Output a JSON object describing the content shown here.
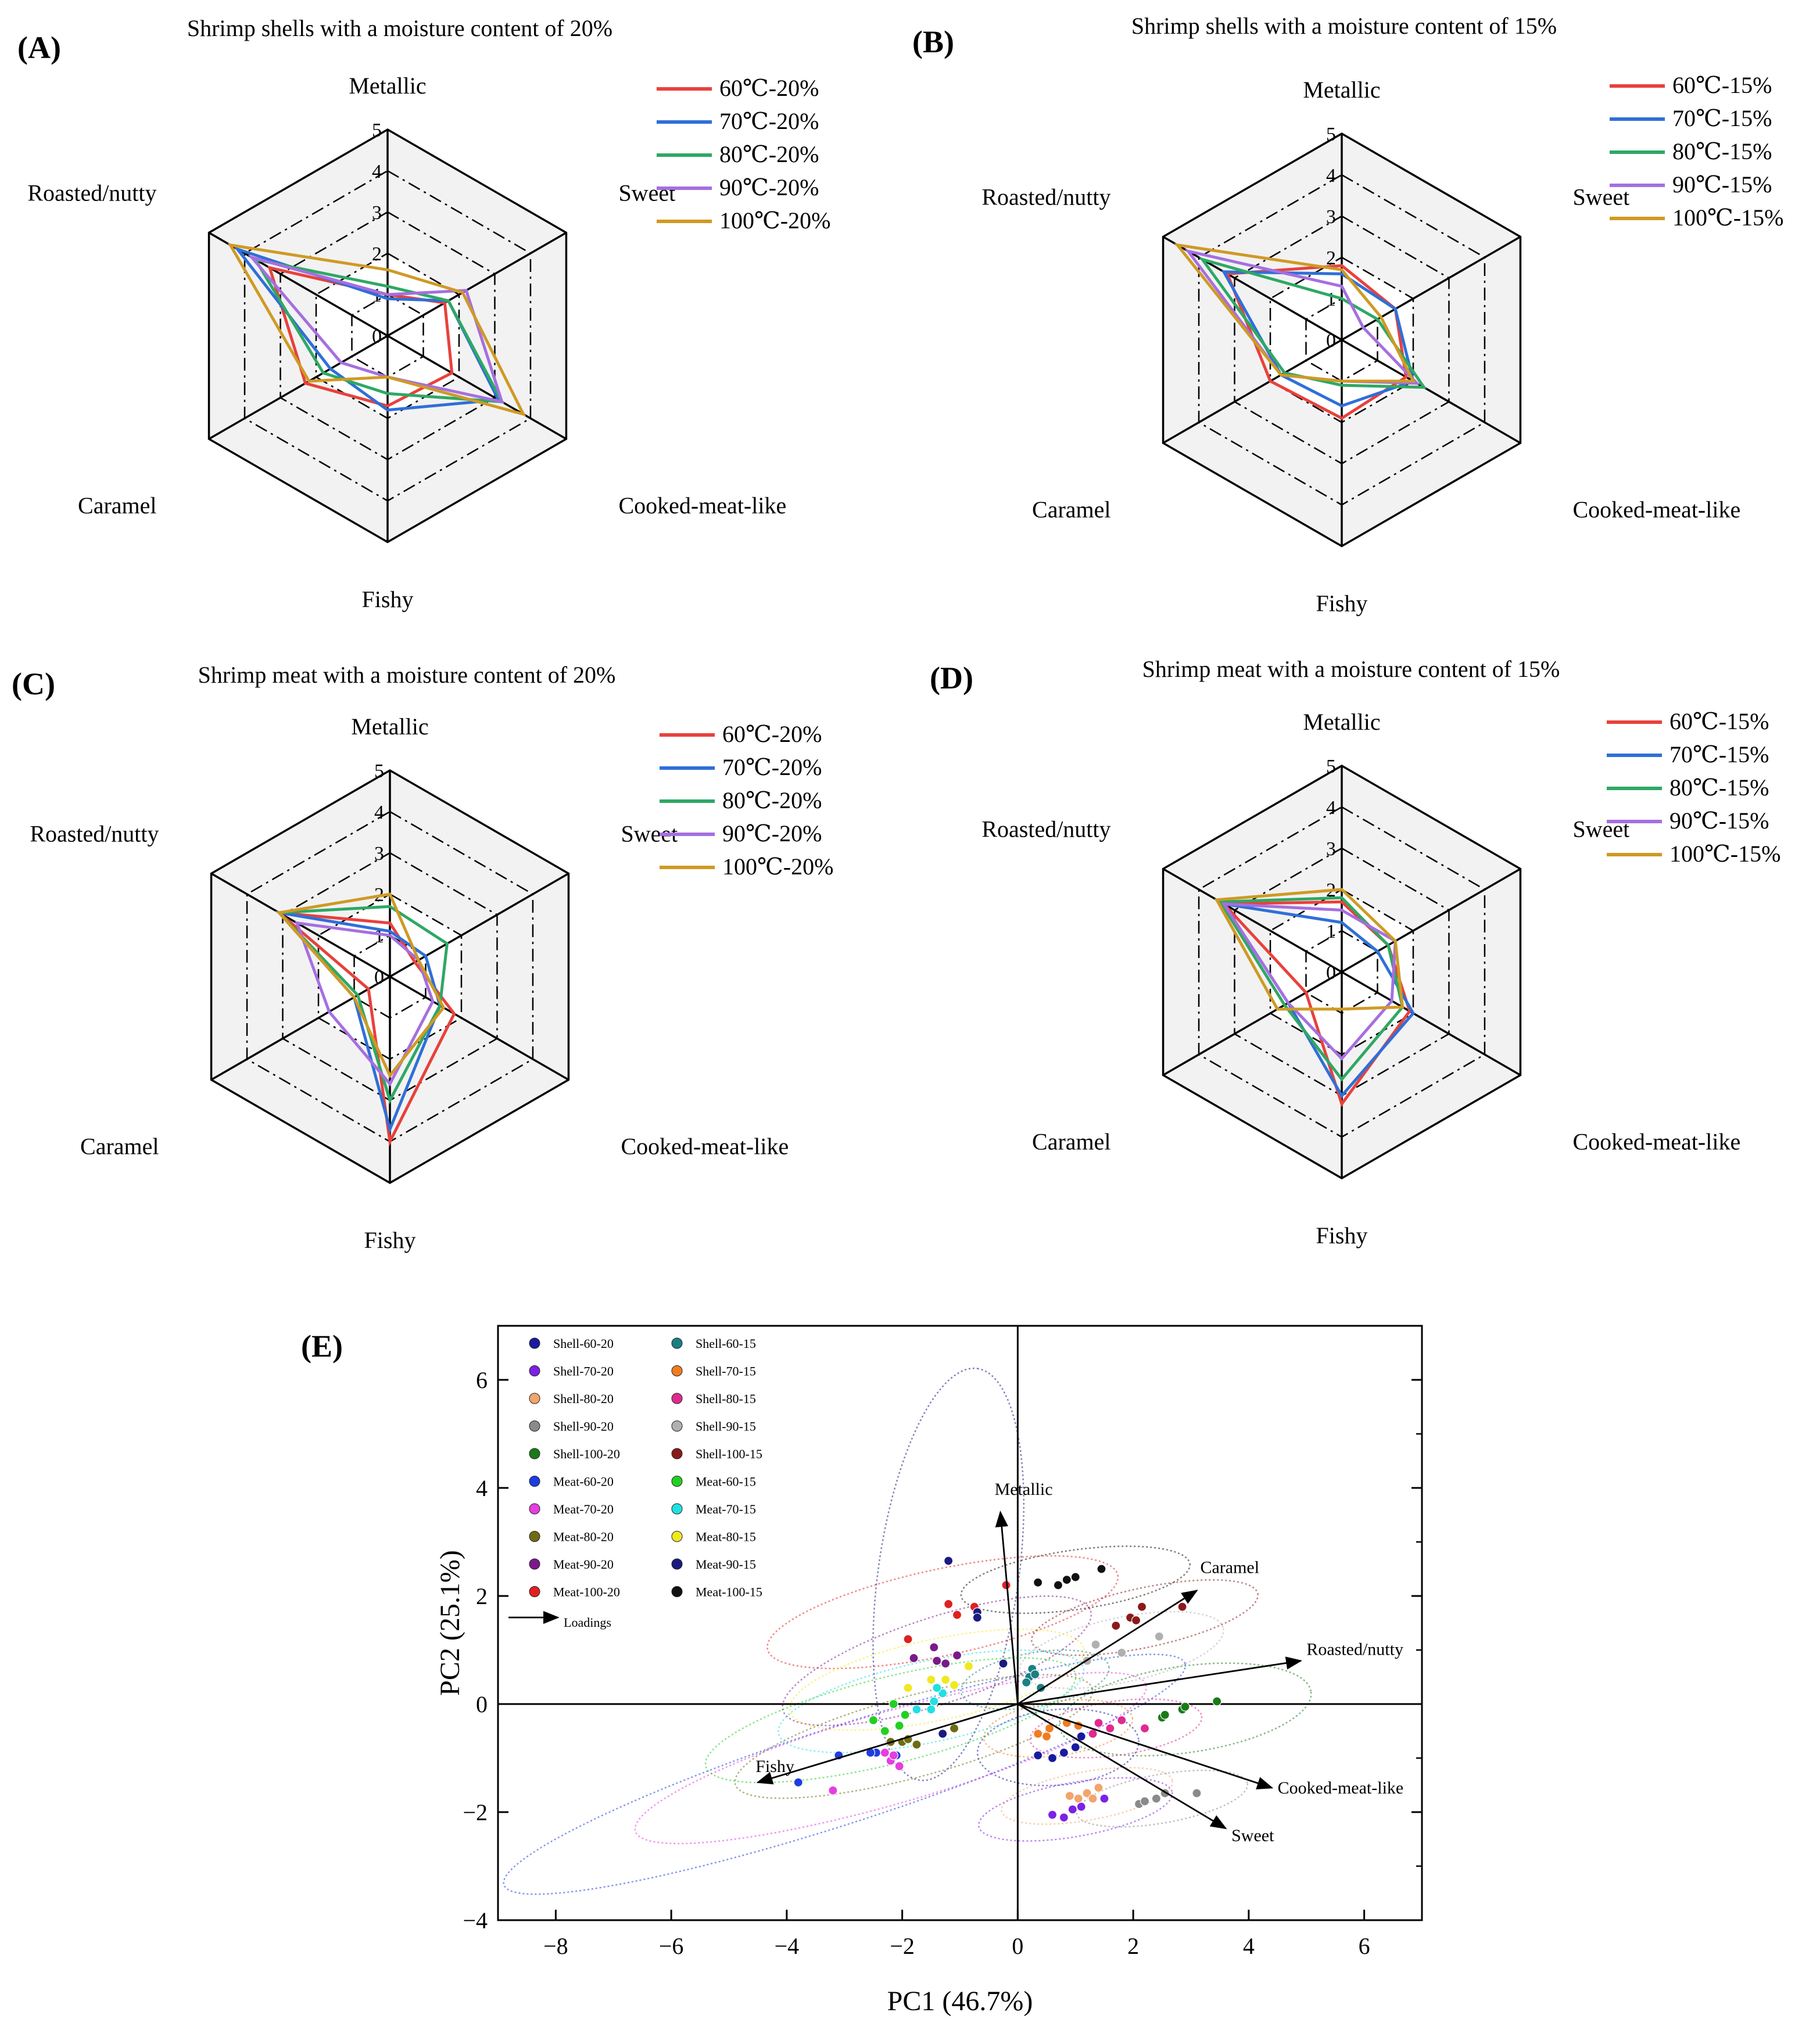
{
  "figure": {
    "label_color": "#000000",
    "axis_tick_values": [
      "0",
      "1",
      "2",
      "3",
      "4",
      "5"
    ]
  },
  "series_colors": {
    "60": "#e8413c",
    "70": "#2f6fd8",
    "80": "#2ea864",
    "90": "#a56fe0",
    "100": "#cf9a24"
  },
  "chart_data": [
    {
      "type": "radar",
      "panel": "(A)",
      "title": "Shrimp shells with a moisture content of 20%",
      "axes": [
        "Metallic",
        "Sweet",
        "Cooked-meat-like",
        "Fishy",
        "Caramel",
        "Roasted/nutty"
      ],
      "range": [
        0,
        5
      ],
      "series": [
        {
          "name": "60℃-20%",
          "values": [
            1.0,
            1.6,
            1.8,
            1.7,
            2.3,
            3.3
          ]
        },
        {
          "name": "70℃-20%",
          "values": [
            0.9,
            1.7,
            3.1,
            1.8,
            1.6,
            4.2
          ]
        },
        {
          "name": "80℃-20%",
          "values": [
            1.2,
            1.7,
            3.2,
            1.4,
            1.8,
            3.7
          ]
        },
        {
          "name": "90℃-20%",
          "values": [
            1.0,
            2.2,
            3.2,
            1.0,
            1.3,
            3.8
          ]
        },
        {
          "name": "100℃-20%",
          "values": [
            1.6,
            2.1,
            3.8,
            1.0,
            2.2,
            4.4
          ]
        }
      ]
    },
    {
      "type": "radar",
      "panel": "(B)",
      "title": "Shrimp shells with a moisture content of 15%",
      "axes": [
        "Metallic",
        "Sweet",
        "Cooked-meat-like",
        "Fishy",
        "Caramel",
        "Roasted/nutty"
      ],
      "range": [
        0,
        5
      ],
      "series": [
        {
          "name": "60℃-15%",
          "values": [
            1.8,
            1.5,
            1.8,
            1.9,
            2.0,
            3.2
          ]
        },
        {
          "name": "70℃-15%",
          "values": [
            1.6,
            1.5,
            2.0,
            1.6,
            1.7,
            3.3
          ]
        },
        {
          "name": "80℃-15%",
          "values": [
            1.0,
            1.0,
            2.3,
            1.1,
            1.6,
            3.9
          ]
        },
        {
          "name": "90℃-15%",
          "values": [
            1.3,
            0.6,
            2.1,
            1.0,
            1.7,
            4.3
          ]
        },
        {
          "name": "100℃-15%",
          "values": [
            1.7,
            1.1,
            2.0,
            1.0,
            1.7,
            4.6
          ]
        }
      ]
    },
    {
      "type": "radar",
      "panel": "(C)",
      "title": "Shrimp meat with a moisture content of 20%",
      "axes": [
        "Metallic",
        "Sweet",
        "Cooked-meat-like",
        "Fishy",
        "Caramel",
        "Roasted/nutty"
      ],
      "range": [
        0,
        5
      ],
      "series": [
        {
          "name": "60℃-20%",
          "values": [
            1.3,
            0.7,
            1.8,
            4.0,
            0.6,
            3.1
          ]
        },
        {
          "name": "70℃-20%",
          "values": [
            1.1,
            1.0,
            1.4,
            3.7,
            1.0,
            3.1
          ]
        },
        {
          "name": "80℃-20%",
          "values": [
            1.7,
            1.6,
            1.4,
            3.0,
            0.9,
            3.1
          ]
        },
        {
          "name": "90℃-20%",
          "values": [
            1.0,
            0.8,
            1.2,
            2.6,
            1.7,
            2.6
          ]
        },
        {
          "name": "100℃-20%",
          "values": [
            2.0,
            0.8,
            1.5,
            2.4,
            1.0,
            3.1
          ]
        }
      ]
    },
    {
      "type": "radar",
      "panel": "(D)",
      "title": "Shrimp meat with a moisture content of 15%",
      "axes": [
        "Metallic",
        "Sweet",
        "Cooked-meat-like",
        "Fishy",
        "Caramel",
        "Roasted/nutty"
      ],
      "range": [
        0,
        5
      ],
      "series": [
        {
          "name": "60℃-15%",
          "values": [
            1.7,
            1.3,
            1.9,
            3.2,
            1.0,
            3.3
          ]
        },
        {
          "name": "70℃-15%",
          "values": [
            1.2,
            1.0,
            2.0,
            3.0,
            1.5,
            3.3
          ]
        },
        {
          "name": "80℃-15%",
          "values": [
            1.8,
            1.3,
            1.7,
            2.6,
            1.6,
            3.4
          ]
        },
        {
          "name": "90℃-15%",
          "values": [
            1.5,
            1.5,
            1.4,
            2.1,
            1.5,
            3.3
          ]
        },
        {
          "name": "100℃-15%",
          "values": [
            2.0,
            1.5,
            1.7,
            0.9,
            1.8,
            3.5
          ]
        }
      ]
    },
    {
      "type": "scatter",
      "panel": "(E)",
      "xlabel": "PC1 (46.7%)",
      "ylabel": "PC2 (25.1%)",
      "xlim": [
        -9,
        7
      ],
      "ylim": [
        -4,
        7
      ],
      "xticks": [
        -8,
        -6,
        -4,
        -2,
        0,
        2,
        4,
        6
      ],
      "yticks": [
        -4,
        -2,
        0,
        2,
        4,
        6
      ],
      "loadings_label": "Loadings",
      "loadings": [
        {
          "name": "Metallic",
          "x": -0.3,
          "y": 3.55
        },
        {
          "name": "Caramel",
          "x": 3.1,
          "y": 2.1
        },
        {
          "name": "Roasted/nutty",
          "x": 4.9,
          "y": 0.8
        },
        {
          "name": "Cooked-meat-like",
          "x": 4.4,
          "y": -1.55
        },
        {
          "name": "Sweet",
          "x": 3.6,
          "y": -2.3
        },
        {
          "name": "Fishy",
          "x": -4.5,
          "y": -1.45
        }
      ],
      "groups": [
        {
          "name": "Shell-60-20",
          "color": "#1a1aa0",
          "points": [
            [
              0.6,
              -1.0
            ],
            [
              0.8,
              -0.9
            ],
            [
              1.1,
              -0.6
            ],
            [
              1.0,
              -0.8
            ],
            [
              0.35,
              -0.95
            ]
          ],
          "ellipse": {
            "cx": 0.7,
            "cy": -0.8,
            "rx": 1.4,
            "ry": 0.7,
            "angle": 5
          }
        },
        {
          "name": "Shell-70-20",
          "color": "#7b22e6",
          "points": [
            [
              0.6,
              -2.05
            ],
            [
              0.8,
              -2.1
            ],
            [
              0.95,
              -1.95
            ],
            [
              1.1,
              -1.9
            ],
            [
              1.5,
              -1.75
            ]
          ],
          "ellipse": {
            "cx": 1.0,
            "cy": -1.95,
            "rx": 1.7,
            "ry": 0.5,
            "angle": 10
          }
        },
        {
          "name": "Shell-80-20",
          "color": "#f2a46b",
          "points": [
            [
              0.9,
              -1.7
            ],
            [
              1.05,
              -1.75
            ],
            [
              1.2,
              -1.65
            ],
            [
              1.4,
              -1.55
            ],
            [
              1.3,
              -1.75
            ]
          ],
          "ellipse": {
            "cx": 1.2,
            "cy": -1.7,
            "rx": 1.5,
            "ry": 0.45,
            "angle": 10
          }
        },
        {
          "name": "Shell-90-20",
          "color": "#8a8a8a",
          "points": [
            [
              2.1,
              -1.85
            ],
            [
              2.4,
              -1.75
            ],
            [
              2.55,
              -1.65
            ],
            [
              3.1,
              -1.65
            ],
            [
              2.2,
              -1.8
            ]
          ],
          "ellipse": {
            "cx": 2.5,
            "cy": -1.75,
            "rx": 1.5,
            "ry": 0.45,
            "angle": 10
          }
        },
        {
          "name": "Shell-100-20",
          "color": "#1a7a1a",
          "points": [
            [
              2.5,
              -0.25
            ],
            [
              2.85,
              -0.1
            ],
            [
              3.45,
              0.05
            ],
            [
              2.9,
              -0.05
            ],
            [
              2.55,
              -0.2
            ]
          ],
          "ellipse": {
            "cx": 2.9,
            "cy": -0.1,
            "rx": 2.2,
            "ry": 0.8,
            "angle": 8
          }
        },
        {
          "name": "Meat-60-20",
          "color": "#1e3de0",
          "points": [
            [
              -3.8,
              -1.45
            ],
            [
              -3.1,
              -0.95
            ],
            [
              -2.45,
              -0.9
            ],
            [
              -2.1,
              -0.95
            ],
            [
              -2.55,
              -0.9
            ]
          ],
          "ellipse": {
            "cx": -3.0,
            "cy": -1.3,
            "rx": 6.2,
            "ry": 0.9,
            "angle": 18
          }
        },
        {
          "name": "Meat-70-20",
          "color": "#e63de0",
          "points": [
            [
              -3.2,
              -1.6
            ],
            [
              -2.2,
              -1.05
            ],
            [
              -2.15,
              -0.95
            ],
            [
              -2.3,
              -0.9
            ],
            [
              -2.05,
              -1.15
            ]
          ],
          "ellipse": {
            "cx": -2.2,
            "cy": -1.0,
            "rx": 4.6,
            "ry": 0.85,
            "angle": 16
          }
        },
        {
          "name": "Meat-80-20",
          "color": "#6e6b14",
          "points": [
            [
              -2.0,
              -0.7
            ],
            [
              -1.9,
              -0.65
            ],
            [
              -1.75,
              -0.75
            ],
            [
              -1.1,
              -0.45
            ],
            [
              -2.2,
              -0.7
            ]
          ],
          "ellipse": {
            "cx": -1.8,
            "cy": -0.6,
            "rx": 3.2,
            "ry": 0.75,
            "angle": 15
          }
        },
        {
          "name": "Meat-90-20",
          "color": "#7b1a8a",
          "points": [
            [
              -1.8,
              0.85
            ],
            [
              -1.45,
              1.05
            ],
            [
              -1.4,
              0.8
            ],
            [
              -1.25,
              0.75
            ],
            [
              -1.05,
              0.9
            ]
          ],
          "ellipse": {
            "cx": -1.4,
            "cy": 0.8,
            "rx": 2.8,
            "ry": 0.8,
            "angle": 18
          }
        },
        {
          "name": "Meat-100-20",
          "color": "#e02020",
          "points": [
            [
              -1.2,
              1.85
            ],
            [
              -1.05,
              1.65
            ],
            [
              -0.75,
              1.8
            ],
            [
              -1.9,
              1.2
            ],
            [
              -0.2,
              2.2
            ]
          ],
          "ellipse": {
            "cx": -1.3,
            "cy": 1.7,
            "rx": 3.1,
            "ry": 0.8,
            "angle": 12
          }
        },
        {
          "name": "Shell-60-15",
          "color": "#1b7f82",
          "points": [
            [
              0.2,
              0.5
            ],
            [
              0.25,
              0.65
            ],
            [
              0.4,
              0.3
            ],
            [
              0.15,
              0.4
            ],
            [
              0.3,
              0.55
            ]
          ],
          "ellipse": {
            "cx": 0.3,
            "cy": 0.45,
            "rx": 1.3,
            "ry": 0.5,
            "angle": 10
          }
        },
        {
          "name": "Shell-70-15",
          "color": "#ef7d20",
          "points": [
            [
              0.35,
              -0.55
            ],
            [
              0.55,
              -0.45
            ],
            [
              0.85,
              -0.35
            ],
            [
              1.05,
              -0.4
            ],
            [
              0.5,
              -0.6
            ]
          ],
          "ellipse": {
            "cx": 0.7,
            "cy": -0.45,
            "rx": 1.3,
            "ry": 0.5,
            "angle": 8
          }
        },
        {
          "name": "Shell-80-15",
          "color": "#e02a90",
          "points": [
            [
              1.4,
              -0.35
            ],
            [
              1.6,
              -0.45
            ],
            [
              2.2,
              -0.45
            ],
            [
              1.3,
              -0.55
            ],
            [
              1.8,
              -0.3
            ]
          ],
          "ellipse": {
            "cx": 1.7,
            "cy": -0.45,
            "rx": 1.5,
            "ry": 0.5,
            "angle": 8
          }
        },
        {
          "name": "Shell-90-15",
          "color": "#b0b0b0",
          "points": [
            [
              1.35,
              1.1
            ],
            [
              1.8,
              0.95
            ],
            [
              2.45,
              1.25
            ],
            [
              1.2,
              0.8
            ]
          ],
          "ellipse": {
            "cx": 1.8,
            "cy": 1.0,
            "rx": 1.8,
            "ry": 0.6,
            "angle": 12
          }
        },
        {
          "name": "Shell-100-15",
          "color": "#8a1a1a",
          "points": [
            [
              1.7,
              1.45
            ],
            [
              1.95,
              1.6
            ],
            [
              2.15,
              1.8
            ],
            [
              2.85,
              1.8
            ],
            [
              2.05,
              1.55
            ]
          ],
          "ellipse": {
            "cx": 2.2,
            "cy": 1.6,
            "rx": 2.0,
            "ry": 0.55,
            "angle": 12
          }
        },
        {
          "name": "Meat-60-15",
          "color": "#22d022",
          "points": [
            [
              -2.5,
              -0.3
            ],
            [
              -2.15,
              0.0
            ],
            [
              -1.95,
              -0.2
            ],
            [
              -2.05,
              -0.4
            ],
            [
              -2.3,
              -0.5
            ]
          ],
          "ellipse": {
            "cx": -2.2,
            "cy": -0.3,
            "rx": 3.3,
            "ry": 0.8,
            "angle": 14
          }
        },
        {
          "name": "Meat-70-15",
          "color": "#22e0e0",
          "points": [
            [
              -1.75,
              -0.1
            ],
            [
              -1.45,
              0.05
            ],
            [
              -1.3,
              0.2
            ],
            [
              -1.4,
              0.3
            ],
            [
              -1.5,
              -0.1
            ]
          ],
          "ellipse": {
            "cx": -1.5,
            "cy": 0.05,
            "rx": 2.7,
            "ry": 0.75,
            "angle": 12
          }
        },
        {
          "name": "Meat-80-15",
          "color": "#f0e820",
          "points": [
            [
              -1.9,
              0.3
            ],
            [
              -1.25,
              0.45
            ],
            [
              -0.85,
              0.7
            ],
            [
              -1.1,
              0.35
            ],
            [
              -1.5,
              0.45
            ]
          ],
          "ellipse": {
            "cx": -1.4,
            "cy": 0.45,
            "rx": 2.6,
            "ry": 0.75,
            "angle": 12
          }
        },
        {
          "name": "Meat-90-15",
          "color": "#1a1a80",
          "points": [
            [
              -1.2,
              2.65
            ],
            [
              -0.7,
              1.7
            ],
            [
              -0.7,
              1.6
            ],
            [
              -0.25,
              0.75
            ],
            [
              -1.3,
              -0.55
            ]
          ],
          "ellipse": {
            "cx": -1.2,
            "cy": 2.4,
            "rx": 3.6,
            "ry": 1.3,
            "angle": 82
          }
        },
        {
          "name": "Meat-100-15",
          "color": "#111111",
          "points": [
            [
              0.35,
              2.25
            ],
            [
              0.7,
              2.2
            ],
            [
              0.85,
              2.3
            ],
            [
              1.0,
              2.35
            ],
            [
              1.45,
              2.5
            ]
          ],
          "ellipse": {
            "cx": 1.0,
            "cy": 2.3,
            "rx": 2.0,
            "ry": 0.55,
            "angle": 8
          }
        }
      ]
    }
  ]
}
